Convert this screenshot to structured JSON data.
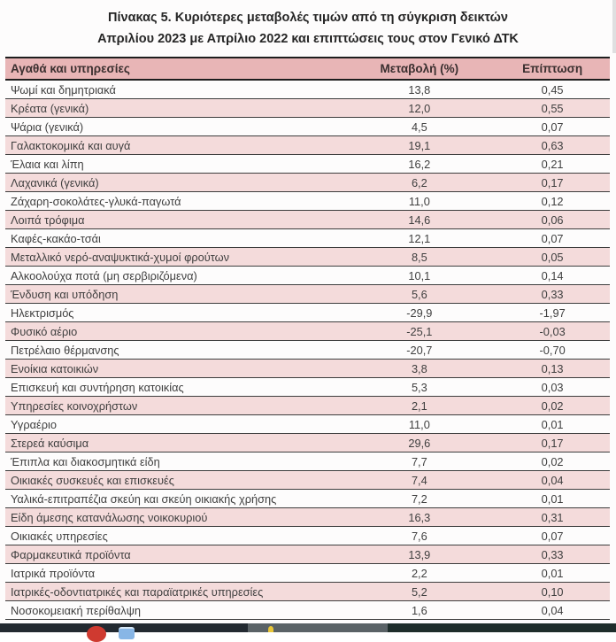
{
  "title": {
    "line1": "Πίνακας  5. Κυριότερες μεταβολές τιμών από τη σύγκριση δεικτών",
    "line2": "Απριλίου 2023 με Απρίλιο 2022 και επιπτώσεις τους στον Γενικό ΔΤΚ"
  },
  "table": {
    "columns": [
      "Αγαθά και υπηρεσίες",
      "Μεταβολή (%)",
      "Επίπτωση"
    ],
    "rows": [
      [
        "Ψωμί και δημητριακά",
        "13,8",
        "0,45"
      ],
      [
        "Κρέατα (γενικά)",
        "12,0",
        "0,55"
      ],
      [
        "Ψάρια (γενικά)",
        "4,5",
        "0,07"
      ],
      [
        "Γαλακτοκομικά και αυγά",
        "19,1",
        "0,63"
      ],
      [
        "Έλαια και λίπη",
        "16,2",
        "0,21"
      ],
      [
        "Λαχανικά (γενικά)",
        "6,2",
        "0,17"
      ],
      [
        "Ζάχαρη-σοκολάτες-γλυκά-παγωτά",
        "11,0",
        "0,12"
      ],
      [
        "Λοιπά τρόφιμα",
        "14,6",
        "0,06"
      ],
      [
        "Καφές-κακάο-τσάι",
        "12,1",
        "0,07"
      ],
      [
        "Μεταλλικό νερό-αναψυκτικά-χυμοί φρούτων",
        "8,5",
        "0,05"
      ],
      [
        "Αλκοολούχα ποτά (μη σερβιριζόμενα)",
        "10,1",
        "0,14"
      ],
      [
        "Ένδυση και υπόδηση",
        "5,6",
        "0,33"
      ],
      [
        "Ηλεκτρισμός",
        "-29,9",
        "-1,97"
      ],
      [
        "Φυσικό αέριο",
        "-25,1",
        "-0,03"
      ],
      [
        "Πετρέλαιο θέρμανσης",
        "-20,7",
        "-0,70"
      ],
      [
        "Ενοίκια κατοικιών",
        "3,8",
        "0,13"
      ],
      [
        "Επισκευή και συντήρηση κατοικίας",
        "5,3",
        "0,03"
      ],
      [
        "Υπηρεσίες κοινοχρήστων",
        "2,1",
        "0,02"
      ],
      [
        "Υγραέριο",
        "11,0",
        "0,01"
      ],
      [
        "Στερεά καύσιμα",
        "29,6",
        "0,17"
      ],
      [
        "Έπιπλα και διακοσμητικά είδη",
        "7,7",
        "0,02"
      ],
      [
        "Οικιακές συσκευές και επισκευές",
        "7,4",
        "0,04"
      ],
      [
        "Υαλικά-επιτραπέζια σκεύη και σκεύη οικιακής χρήσης",
        "7,2",
        "0,01"
      ],
      [
        "Είδη άμεσης κατανάλωσης νοικοκυριού",
        "16,3",
        "0,31"
      ],
      [
        "Οικιακές υπηρεσίες",
        "7,6",
        "0,07"
      ],
      [
        "Φαρμακευτικά προϊόντα",
        "13,9",
        "0,33"
      ],
      [
        "Ιατρικά προϊόντα",
        "2,2",
        "0,01"
      ],
      [
        "Ιατρικές-οδοντιατρικές και παραϊατρικές υπηρεσίες",
        "5,2",
        "0,10"
      ],
      [
        "Νοσοκομειακή περίθαλψη",
        "1,6",
        "0,04"
      ]
    ]
  },
  "colors": {
    "header_pink": "#e8b5b6",
    "row_pink": "#f4dbdb",
    "row_border": "#3d3d3d",
    "text": "#3f3f3f",
    "taskbar_navy": "#232a31",
    "taskbar_gray": "#5a6266",
    "taskbar_teal": "#1e2d2b",
    "accent_red": "#cf3a30",
    "accent_blue": "#88b6e6",
    "accent_yellow": "#e9c637"
  },
  "taskbar": {
    "fragments": [
      "red-circle-icon",
      "blue-window-icon",
      "yellow-dot-icon"
    ]
  }
}
